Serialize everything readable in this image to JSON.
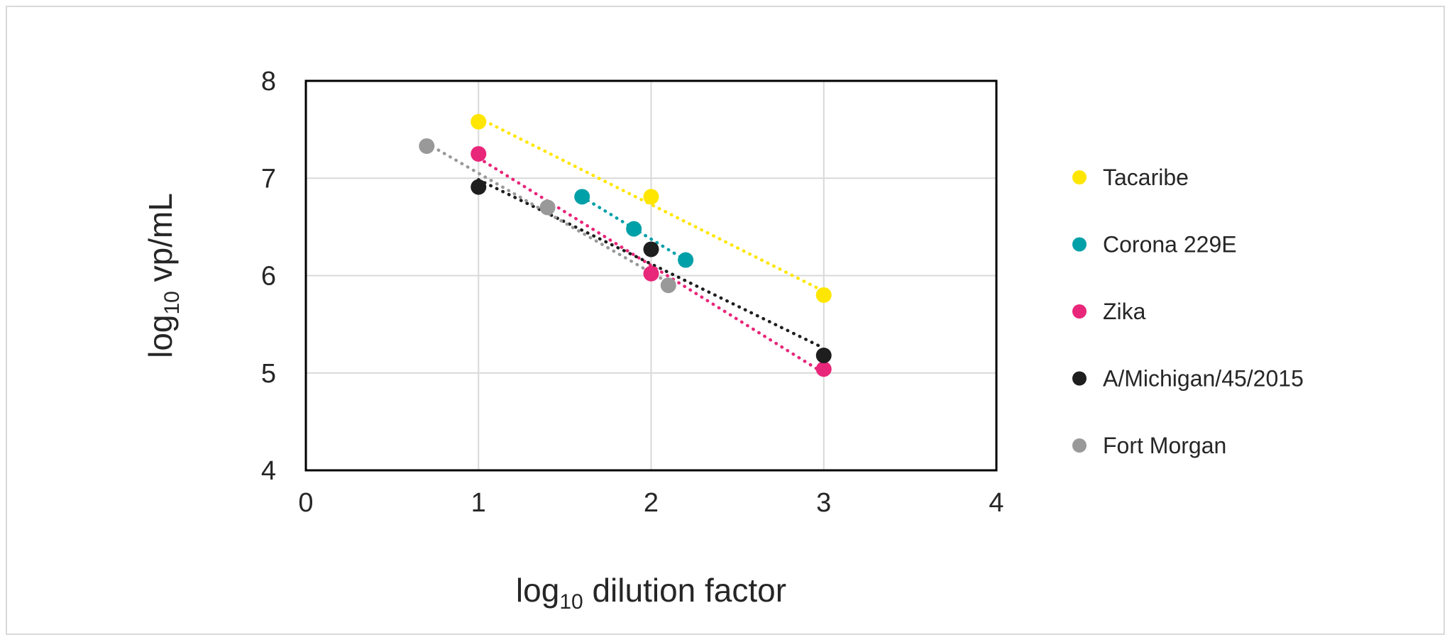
{
  "chart_data": {
    "type": "scatter",
    "xlabel": {
      "prefix": "log",
      "sub": "10",
      "rest": " dilution factor"
    },
    "ylabel": {
      "prefix": "log",
      "sub": "10",
      "rest": " vp/mL"
    },
    "xlim": [
      0,
      4
    ],
    "ylim": [
      4,
      8
    ],
    "xticks": [
      "0",
      "1",
      "2",
      "3",
      "4"
    ],
    "yticks": [
      "4",
      "5",
      "6",
      "7",
      "8"
    ],
    "grid": true,
    "legend_position": "right",
    "trendlines": "dotted linear",
    "series": [
      {
        "name": "Tacaribe",
        "color": "#ffe600",
        "points": [
          [
            1,
            7.58
          ],
          [
            2,
            6.81
          ],
          [
            3,
            5.8
          ]
        ]
      },
      {
        "name": "Corona 229E",
        "color": "#00a0a8",
        "points": [
          [
            1.6,
            6.81
          ],
          [
            1.9,
            6.48
          ],
          [
            2.2,
            6.16
          ]
        ]
      },
      {
        "name": "Zika",
        "color": "#e8267a",
        "points": [
          [
            1,
            7.25
          ],
          [
            2,
            6.02
          ],
          [
            3,
            5.04
          ]
        ]
      },
      {
        "name": "A/Michigan/45/2015",
        "color": "#1e1e1e",
        "points": [
          [
            1,
            6.91
          ],
          [
            2,
            6.27
          ],
          [
            3,
            5.18
          ]
        ]
      },
      {
        "name": "Fort Morgan",
        "color": "#999999",
        "points": [
          [
            0.7,
            7.33
          ],
          [
            1.4,
            6.7
          ],
          [
            2.1,
            5.9
          ]
        ]
      }
    ]
  }
}
